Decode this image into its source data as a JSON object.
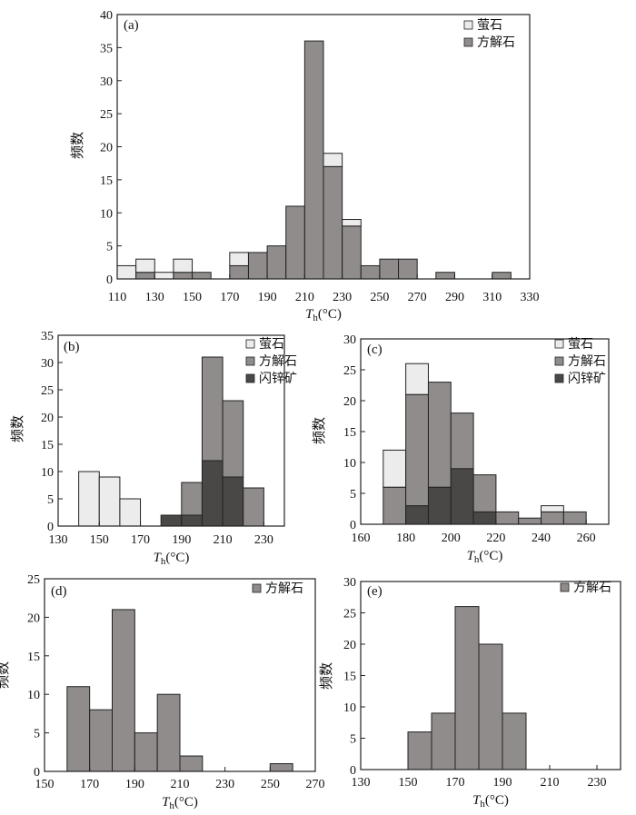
{
  "colors": {
    "fluorite": "#ececec",
    "calcite": "#8f8c8b",
    "sphalerite": "#4a4847",
    "stroke": "#222222"
  },
  "chart_data": [
    {
      "type": "bar",
      "panel_label": "(a)",
      "xlabel_italic": "T",
      "xlabel_sub": "h",
      "xlabel_unit": "(°C)",
      "ylabel": "频数",
      "xlim": [
        110,
        330
      ],
      "ylim": [
        0,
        40
      ],
      "xticks": [
        110,
        130,
        150,
        170,
        190,
        210,
        230,
        250,
        270,
        290,
        310,
        330
      ],
      "yticks": [
        0,
        5,
        10,
        15,
        20,
        25,
        30,
        35,
        40
      ],
      "bin_width": 10,
      "legend": [
        {
          "key": "fluorite",
          "label": "萤石"
        },
        {
          "key": "calcite",
          "label": "方解石"
        }
      ],
      "bars": [
        {
          "x0": 110,
          "calcite": 0,
          "fluorite": 2
        },
        {
          "x0": 120,
          "calcite": 1,
          "fluorite": 2
        },
        {
          "x0": 130,
          "calcite": 0,
          "fluorite": 1
        },
        {
          "x0": 140,
          "calcite": 1,
          "fluorite": 2
        },
        {
          "x0": 150,
          "calcite": 1,
          "fluorite": 0
        },
        {
          "x0": 170,
          "calcite": 2,
          "fluorite": 2
        },
        {
          "x0": 180,
          "calcite": 4,
          "fluorite": 0
        },
        {
          "x0": 190,
          "calcite": 5,
          "fluorite": 0
        },
        {
          "x0": 200,
          "calcite": 11,
          "fluorite": 0
        },
        {
          "x0": 210,
          "calcite": 36,
          "fluorite": 0
        },
        {
          "x0": 220,
          "calcite": 17,
          "fluorite": 2
        },
        {
          "x0": 230,
          "calcite": 8,
          "fluorite": 1
        },
        {
          "x0": 240,
          "calcite": 2,
          "fluorite": 0
        },
        {
          "x0": 250,
          "calcite": 3,
          "fluorite": 0
        },
        {
          "x0": 260,
          "calcite": 3,
          "fluorite": 0
        },
        {
          "x0": 280,
          "calcite": 1,
          "fluorite": 0
        },
        {
          "x0": 310,
          "calcite": 1,
          "fluorite": 0
        }
      ]
    },
    {
      "type": "bar",
      "panel_label": "(b)",
      "xlabel_italic": "T",
      "xlabel_sub": "h",
      "xlabel_unit": "(°C)",
      "ylabel": "频数",
      "xlim": [
        130,
        240
      ],
      "ylim": [
        0,
        35
      ],
      "xticks": [
        130,
        150,
        170,
        190,
        210,
        230
      ],
      "yticks": [
        0,
        5,
        10,
        15,
        20,
        25,
        30,
        35
      ],
      "bin_width": 10,
      "legend": [
        {
          "key": "fluorite",
          "label": "萤石"
        },
        {
          "key": "calcite",
          "label": "方解石"
        },
        {
          "key": "sphalerite",
          "label": "闪锌矿"
        }
      ],
      "bars": [
        {
          "x0": 140,
          "fluorite": 10
        },
        {
          "x0": 150,
          "fluorite": 9
        },
        {
          "x0": 160,
          "fluorite": 5
        },
        {
          "x0": 180,
          "sphalerite": 2
        },
        {
          "x0": 190,
          "sphalerite": 2,
          "calcite": 6
        },
        {
          "x0": 200,
          "sphalerite": 12,
          "calcite": 19
        },
        {
          "x0": 210,
          "sphalerite": 9,
          "calcite": 14
        },
        {
          "x0": 220,
          "calcite": 7
        }
      ]
    },
    {
      "type": "bar",
      "panel_label": "(c)",
      "xlabel_italic": "T",
      "xlabel_sub": "h",
      "xlabel_unit": "(°C)",
      "ylabel": "频数",
      "xlim": [
        160,
        270
      ],
      "ylim": [
        0,
        30
      ],
      "xticks": [
        160,
        180,
        200,
        220,
        240,
        260
      ],
      "yticks": [
        0,
        5,
        10,
        15,
        20,
        25,
        30
      ],
      "bin_width": 10,
      "legend": [
        {
          "key": "fluorite",
          "label": "萤石"
        },
        {
          "key": "calcite",
          "label": "方解石"
        },
        {
          "key": "sphalerite",
          "label": "闪锌矿"
        }
      ],
      "bars": [
        {
          "x0": 170,
          "calcite": 6,
          "fluorite": 6
        },
        {
          "x0": 180,
          "sphalerite": 3,
          "calcite": 18,
          "fluorite": 5
        },
        {
          "x0": 190,
          "sphalerite": 6,
          "calcite": 17
        },
        {
          "x0": 200,
          "sphalerite": 9,
          "calcite": 9
        },
        {
          "x0": 210,
          "sphalerite": 2,
          "calcite": 6
        },
        {
          "x0": 220,
          "calcite": 2
        },
        {
          "x0": 230,
          "calcite": 1
        },
        {
          "x0": 240,
          "calcite": 2,
          "fluorite": 1
        },
        {
          "x0": 250,
          "calcite": 2
        }
      ]
    },
    {
      "type": "bar",
      "panel_label": "(d)",
      "xlabel_italic": "T",
      "xlabel_sub": "h",
      "xlabel_unit": "(°C)",
      "ylabel": "频数",
      "xlim": [
        150,
        270
      ],
      "ylim": [
        0,
        25
      ],
      "xticks": [
        150,
        170,
        190,
        210,
        230,
        250,
        270
      ],
      "yticks": [
        0,
        5,
        10,
        15,
        20,
        25
      ],
      "bin_width": 10,
      "legend": [
        {
          "key": "calcite",
          "label": "方解石"
        }
      ],
      "bars": [
        {
          "x0": 160,
          "calcite": 11
        },
        {
          "x0": 170,
          "calcite": 8
        },
        {
          "x0": 180,
          "calcite": 21
        },
        {
          "x0": 190,
          "calcite": 5
        },
        {
          "x0": 200,
          "calcite": 10
        },
        {
          "x0": 210,
          "calcite": 2
        },
        {
          "x0": 250,
          "calcite": 1
        }
      ]
    },
    {
      "type": "bar",
      "panel_label": "(e)",
      "xlabel_italic": "T",
      "xlabel_sub": "h",
      "xlabel_unit": "(°C)",
      "ylabel": "频数",
      "xlim": [
        130,
        240
      ],
      "ylim": [
        0,
        30
      ],
      "xticks": [
        130,
        150,
        170,
        190,
        210,
        230
      ],
      "yticks": [
        0,
        5,
        10,
        15,
        20,
        25,
        30
      ],
      "bin_width": 10,
      "legend": [
        {
          "key": "calcite",
          "label": "方解石"
        }
      ],
      "bars": [
        {
          "x0": 150,
          "calcite": 6
        },
        {
          "x0": 160,
          "calcite": 9
        },
        {
          "x0": 170,
          "calcite": 26
        },
        {
          "x0": 180,
          "calcite": 20
        },
        {
          "x0": 190,
          "calcite": 9
        }
      ]
    }
  ]
}
